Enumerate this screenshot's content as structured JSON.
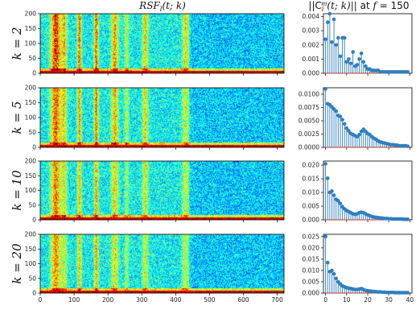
{
  "chart_data": [
    {
      "type": "heatmap",
      "title": "RSF_l(t; k)",
      "title_parts": {
        "main": "RSF",
        "sub": "l",
        "args": "(t; k)"
      },
      "x_ticks": [
        0,
        100,
        200,
        300,
        400,
        500,
        600,
        700
      ],
      "xlim": [
        0,
        720
      ],
      "y_ticks": [
        0,
        50,
        100,
        150,
        200
      ],
      "ylim": [
        0,
        200
      ],
      "colormap": "jet",
      "grid": false,
      "description_of_structure": "low-frequency rows dark red; bright vertical bands near t≈40-70, 110-125, 160-175, 210-230, 300-320, 420-440; blue-green noise elsewhere",
      "panels": [
        {
          "row_label": "k = 2",
          "k": 2
        },
        {
          "row_label": "k = 5",
          "k": 5
        },
        {
          "row_label": "k = 10",
          "k": 10
        },
        {
          "row_label": "k = 20",
          "k": 20
        }
      ]
    },
    {
      "type": "stem",
      "title": "||C_l^m(t; k)|| at f = 150",
      "title_parts": {
        "pre": "||C",
        "sub": "l",
        "sup": "m",
        "args": "(t; k)||",
        "mid": " at ",
        "f": "f",
        "post": " = 150"
      },
      "x_ticks": [
        0,
        10,
        20,
        30,
        40
      ],
      "xlim": [
        -1,
        41
      ],
      "marker_color": "#2f7fbf",
      "baseline_color": "#c0392b",
      "panels": [
        {
          "k": 2,
          "ylim": [
            0,
            0.0042
          ],
          "y_ticks": [
            0.0,
            0.001,
            0.002,
            0.003,
            0.004
          ],
          "y_tick_labels": [
            "0.000",
            "0.001",
            "0.002",
            "0.003",
            "0.004"
          ],
          "values": [
            0.0024,
            0.0036,
            0.0042,
            0.0022,
            0.0038,
            0.002,
            0.0025,
            0.0012,
            0.0025,
            0.0025,
            0.0008,
            0.001,
            0.0007,
            0.0015,
            0.0005,
            0.0006,
            0.001,
            0.0014,
            0.0008,
            0.0005,
            0.0003,
            0.0003,
            0.0002,
            0.0002,
            0.0002,
            0.0002,
            0.0001,
            0.0001,
            0.0001,
            0.0001,
            0.0001,
            0.0001,
            0.0001,
            0.0001,
            0.0001,
            0.0001,
            0.0001,
            0.0001,
            0.0001,
            0.0001
          ]
        },
        {
          "k": 5,
          "ylim": [
            0,
            0.0112
          ],
          "y_ticks": [
            0.0,
            0.0025,
            0.005,
            0.0075,
            0.01
          ],
          "y_tick_labels": [
            "0.0000",
            "0.0025",
            "0.0050",
            "0.0075",
            "0.0100"
          ],
          "values": [
            0.011,
            0.0082,
            0.008,
            0.0076,
            0.0072,
            0.0068,
            0.006,
            0.0058,
            0.0052,
            0.0044,
            0.0036,
            0.0031,
            0.0026,
            0.0024,
            0.0022,
            0.002,
            0.0024,
            0.003,
            0.0034,
            0.003,
            0.0026,
            0.0024,
            0.002,
            0.0017,
            0.0015,
            0.0012,
            0.001,
            0.0009,
            0.0008,
            0.0007,
            0.0006,
            0.0005,
            0.0005,
            0.0004,
            0.0004,
            0.0003,
            0.0003,
            0.0003,
            0.0003,
            0.0002
          ]
        },
        {
          "k": 10,
          "ylim": [
            0,
            0.0215
          ],
          "y_ticks": [
            0.0,
            0.005,
            0.01,
            0.015,
            0.02
          ],
          "y_tick_labels": [
            "0.000",
            "0.005",
            "0.010",
            "0.015",
            "0.020"
          ],
          "values": [
            0.0205,
            0.0152,
            0.01,
            0.0105,
            0.009,
            0.0075,
            0.007,
            0.006,
            0.0048,
            0.004,
            0.0034,
            0.003,
            0.0026,
            0.0022,
            0.002,
            0.0022,
            0.0026,
            0.0028,
            0.0026,
            0.0022,
            0.0018,
            0.0015,
            0.0012,
            0.001,
            0.0009,
            0.0008,
            0.0007,
            0.0006,
            0.0005,
            0.0005,
            0.0004,
            0.0004,
            0.0003,
            0.0003,
            0.0003,
            0.0003,
            0.0003,
            0.0002,
            0.0002,
            0.0002
          ]
        },
        {
          "k": 20,
          "ylim": [
            0,
            0.026
          ],
          "y_ticks": [
            0.0,
            0.005,
            0.01,
            0.015,
            0.02,
            0.025
          ],
          "y_tick_labels": [
            "0.000",
            "0.005",
            "0.010",
            "0.015",
            "0.020",
            "0.025"
          ],
          "values": [
            0.025,
            0.0135,
            0.0095,
            0.01,
            0.0085,
            0.0065,
            0.005,
            0.004,
            0.0032,
            0.0028,
            0.0024,
            0.0022,
            0.002,
            0.0018,
            0.0016,
            0.0016,
            0.0018,
            0.002,
            0.0016,
            0.0012,
            0.001,
            0.0009,
            0.0008,
            0.0007,
            0.0006,
            0.0005,
            0.0005,
            0.0004,
            0.0004,
            0.0003,
            0.0003,
            0.0003,
            0.0003,
            0.0002,
            0.0002,
            0.0002,
            0.0002,
            0.0002,
            0.0002,
            0.0002
          ]
        }
      ]
    }
  ]
}
